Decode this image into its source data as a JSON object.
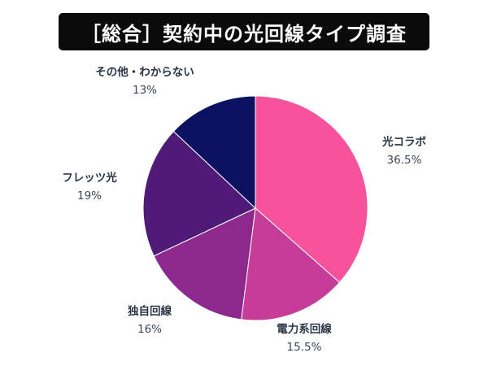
{
  "chart_data": {
    "type": "pie",
    "title": "［総合］契約中の光回線タイプ調査",
    "start_angle_deg": 0,
    "direction": "clockwise",
    "slices": [
      {
        "label": "光コラボ",
        "value": 36.5,
        "value_label": "36.5%",
        "color": "#F7529C"
      },
      {
        "label": "電力系回線",
        "value": 15.5,
        "value_label": "15.5%",
        "color": "#C53C99"
      },
      {
        "label": "独自回線",
        "value": 16,
        "value_label": "16%",
        "color": "#8D288C"
      },
      {
        "label": "フレッツ光",
        "value": 19,
        "value_label": "19%",
        "color": "#501A79"
      },
      {
        "label": "その他・わからない",
        "value": 13,
        "value_label": "13%",
        "color": "#0D1260"
      }
    ]
  }
}
